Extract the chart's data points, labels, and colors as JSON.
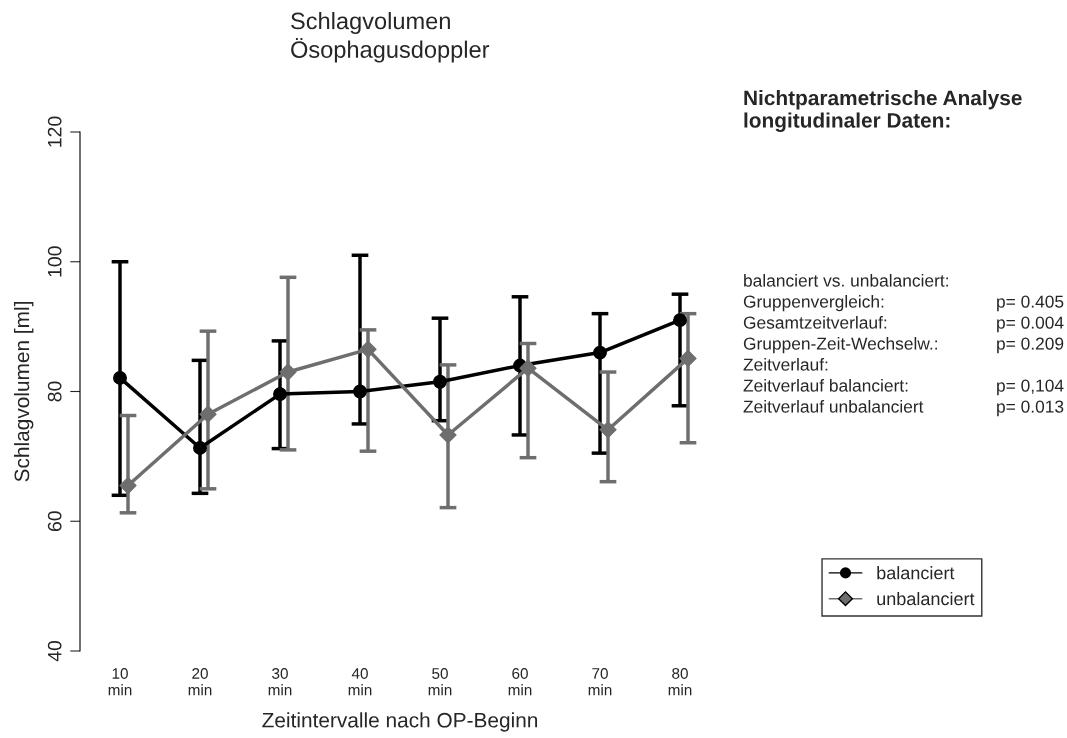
{
  "chart_data": {
    "type": "line",
    "title": "Schlagvolumen\nÖsophagusdoppler",
    "xlabel": "Zeitintervalle nach OP-Beginn",
    "ylabel": "Schlagvolumen [ml]",
    "categories": [
      "10\nmin",
      "20\nmin",
      "30\nmin",
      "40\nmin",
      "50\nmin",
      "60\nmin",
      "70\nmin",
      "80\nmin"
    ],
    "series": [
      {
        "name": "balanciert",
        "color": "#000000",
        "marker": "circle",
        "values": [
          82.1,
          71.3,
          79.6,
          80.0,
          81.5,
          84.0,
          86.0,
          91.0
        ],
        "errors": [
          [
            64.0,
            100.0
          ],
          [
            64.3,
            84.8
          ],
          [
            71.2,
            87.8
          ],
          [
            75.0,
            101.0
          ],
          [
            75.5,
            91.3
          ],
          [
            73.3,
            94.6
          ],
          [
            70.5,
            92.0
          ],
          [
            77.8,
            95.0
          ]
        ]
      },
      {
        "name": "unbalanciert",
        "color": "#6e6e6e",
        "marker": "diamond",
        "values": [
          65.5,
          76.5,
          83.0,
          86.5,
          73.3,
          83.6,
          74.1,
          85.1
        ],
        "errors": [
          [
            61.3,
            76.3
          ],
          [
            65.0,
            89.3
          ],
          [
            71.0,
            97.6
          ],
          [
            70.8,
            89.5
          ],
          [
            62.1,
            84.1
          ],
          [
            69.8,
            87.4
          ],
          [
            66.1,
            83.0
          ],
          [
            72.1,
            92.0
          ]
        ]
      }
    ],
    "ylim": [
      40,
      120
    ],
    "yticks": [
      40,
      60,
      80,
      100,
      120
    ],
    "grid": false,
    "legend": "right",
    "line_style": "solid",
    "annotations": [
      "Nichtparametrische Analyse\nlongitudinaler Daten:",
      "balanciert vs. unbalanciert:",
      "Gruppenvergleich:",
      "p= 0.405",
      "Gesamtzeitverlauf:",
      "p= 0.004",
      "Gruppen-Zeit-Wechselw.:",
      "p= 0.209",
      "Zeitverlauf:",
      "Zeitverlauf balanciert:",
      "p= 0,104",
      "Zeitverlauf unbalanciert",
      "p= 0.013"
    ]
  }
}
